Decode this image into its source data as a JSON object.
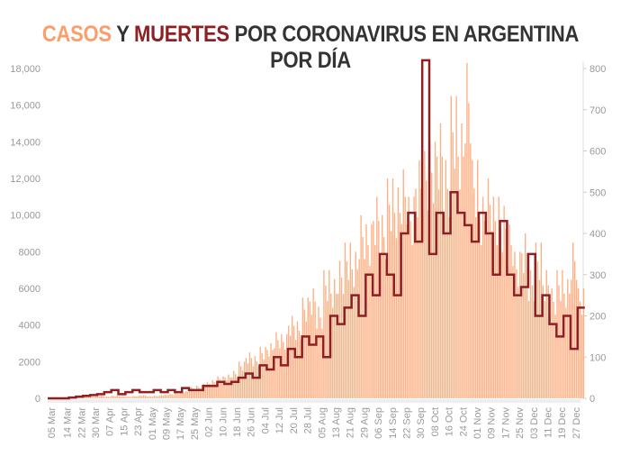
{
  "chart_data": {
    "type": "bar",
    "title_parts": {
      "cases": "CASOS",
      "y": " Y ",
      "deaths": "MUERTES",
      "rest": " POR CORONAVIRUS EN ARGENTINA POR DÍA"
    },
    "x_tick_labels": [
      "05 Mar",
      "14 Mar",
      "22 Mar",
      "30 Mar",
      "07 Apr",
      "15 Apr",
      "23 Apr",
      "01 May",
      "09 May",
      "17 May",
      "25 May",
      "02 Jun",
      "10 Jun",
      "18 Jun",
      "26 Jun",
      "04 Jul",
      "12 Jul",
      "20 Jul",
      "28 Jul",
      "05 Aug",
      "13 Aug",
      "21 Aug",
      "29 Aug",
      "06 Sep",
      "14 Sep",
      "22 Sep",
      "30 Sep",
      "08 Oct",
      "16 Oct",
      "24 Oct",
      "01 Nov",
      "09 Nov",
      "17 Nov",
      "25 Nov",
      "03 Dec",
      "11 Dec",
      "19 Dec",
      "27 Dec"
    ],
    "x_start": "2020-03-03",
    "x_step_days": 4,
    "y_left": {
      "ticks": [
        0,
        2000,
        4000,
        6000,
        8000,
        10000,
        12000,
        14000,
        16000,
        18000
      ],
      "tick_labels": [
        "0",
        "2000",
        "4000",
        "6000",
        "8000",
        "10,000",
        "12,000",
        "14,000",
        "16,000",
        "18,000"
      ],
      "range": [
        0,
        18000
      ]
    },
    "y_right": {
      "ticks": [
        0,
        100,
        200,
        300,
        400,
        500,
        600,
        700,
        800
      ],
      "range": [
        0,
        800
      ]
    },
    "grid": false,
    "series": [
      {
        "name": "CASOS",
        "axis": "left",
        "type": "bar",
        "color": "#fdb084",
        "values": [
          0,
          0,
          20,
          40,
          80,
          100,
          100,
          150,
          100,
          150,
          120,
          100,
          130,
          170,
          120,
          150,
          200,
          250,
          300,
          400,
          600,
          700,
          900,
          1000,
          1200,
          1300,
          1500,
          2000,
          2500,
          2300,
          2800,
          3000,
          3600,
          3500,
          4500,
          4200,
          5500,
          6000,
          5000,
          7000,
          6500,
          7500,
          8500,
          8000,
          10000,
          9500,
          11000,
          10000,
          12000,
          11500,
          12500,
          11000,
          13000,
          13500,
          14000,
          15000,
          13000,
          16500,
          15000,
          18300,
          13000,
          11000,
          12000,
          11000,
          10500,
          9500,
          8000,
          9000,
          7000,
          8500,
          7000,
          6000,
          7000,
          6500,
          8500,
          6000
        ]
      },
      {
        "name": "MUERTES",
        "axis": "right",
        "type": "step",
        "color": "#8e1f22",
        "values": [
          0,
          0,
          0,
          2,
          4,
          6,
          8,
          10,
          15,
          20,
          10,
          15,
          20,
          15,
          15,
          20,
          15,
          20,
          15,
          25,
          20,
          20,
          30,
          30,
          40,
          35,
          40,
          50,
          60,
          50,
          80,
          70,
          100,
          80,
          120,
          100,
          150,
          130,
          150,
          100,
          200,
          180,
          220,
          250,
          200,
          300,
          250,
          350,
          300,
          250,
          400,
          450,
          380,
          820,
          350,
          450,
          400,
          500,
          450,
          420,
          380,
          450,
          400,
          300,
          430,
          300,
          250,
          270,
          350,
          200,
          250,
          180,
          150,
          200,
          120,
          220
        ]
      }
    ]
  }
}
